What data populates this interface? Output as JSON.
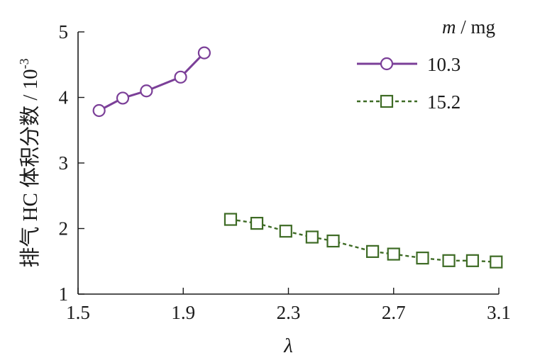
{
  "chart_data": {
    "type": "line",
    "xlabel": "λ",
    "ylabel": "排气 HC 体积分数 / 10",
    "ylabel_sup": "-3",
    "xlim": [
      1.5,
      3.1
    ],
    "ylim": [
      1,
      5
    ],
    "xticks": [
      "1.5",
      "1.9",
      "2.3",
      "2.7",
      "3.1"
    ],
    "yticks": [
      "1",
      "2",
      "3",
      "4",
      "5"
    ],
    "grid": false,
    "legend": {
      "title_var": "m",
      "title_unit": " / mg",
      "placement": "top-right"
    },
    "series": [
      {
        "name": "10.3",
        "color": "#7b3f98",
        "marker": "circle",
        "line": "solid",
        "x": [
          1.58,
          1.67,
          1.76,
          1.89,
          1.98
        ],
        "y": [
          3.8,
          3.99,
          4.1,
          4.31,
          4.68
        ]
      },
      {
        "name": "15.2",
        "color": "#3e6b25",
        "marker": "square",
        "line": "dashed",
        "x": [
          2.08,
          2.18,
          2.29,
          2.39,
          2.47,
          2.62,
          2.7,
          2.81,
          2.91,
          3.0,
          3.09
        ],
        "y": [
          2.14,
          2.08,
          1.96,
          1.87,
          1.81,
          1.65,
          1.61,
          1.55,
          1.51,
          1.51,
          1.49
        ]
      }
    ]
  }
}
